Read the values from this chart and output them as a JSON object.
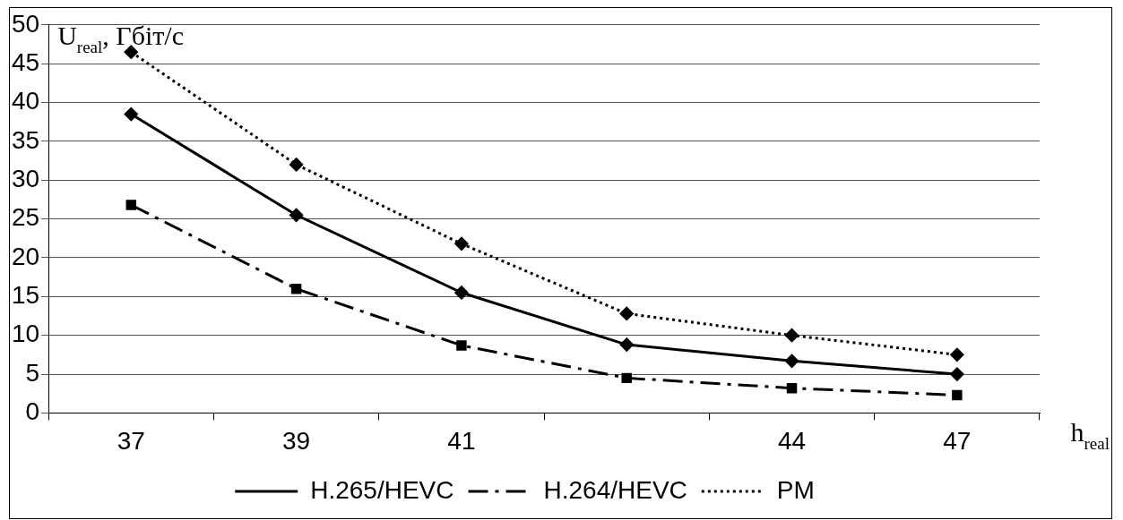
{
  "chart_data": {
    "type": "line",
    "xlabel": "h$_{real}$",
    "ylabel": "U$_{real}$, Гбіт/с",
    "categories": [
      "37",
      "39",
      "41",
      null,
      "44",
      "47"
    ],
    "series": [
      {
        "name": "H.265/HEVC",
        "color": "#000000",
        "values": [
          38.5,
          25.5,
          15.5,
          8.8,
          6.7,
          5.0
        ],
        "marker": "diamond",
        "line_style": "solid"
      },
      {
        "name": "H.264/HEVC",
        "color": "#000000",
        "values": [
          26.8,
          16,
          8.7,
          4.5,
          3.2,
          2.3
        ],
        "marker": "square",
        "line_style": "dashed"
      },
      {
        "name": "PM",
        "color": "#000000",
        "values": [
          46.5,
          32,
          21.8,
          12.8,
          10.0,
          7.5
        ],
        "marker": "diamond",
        "line_style": "dotted"
      }
    ],
    "ylim": [
      0,
      50
    ],
    "yticks": [
      0,
      5,
      10,
      15,
      20,
      25,
      30,
      35,
      40,
      45,
      50
    ],
    "grid": "y",
    "legend": "bottom"
  }
}
